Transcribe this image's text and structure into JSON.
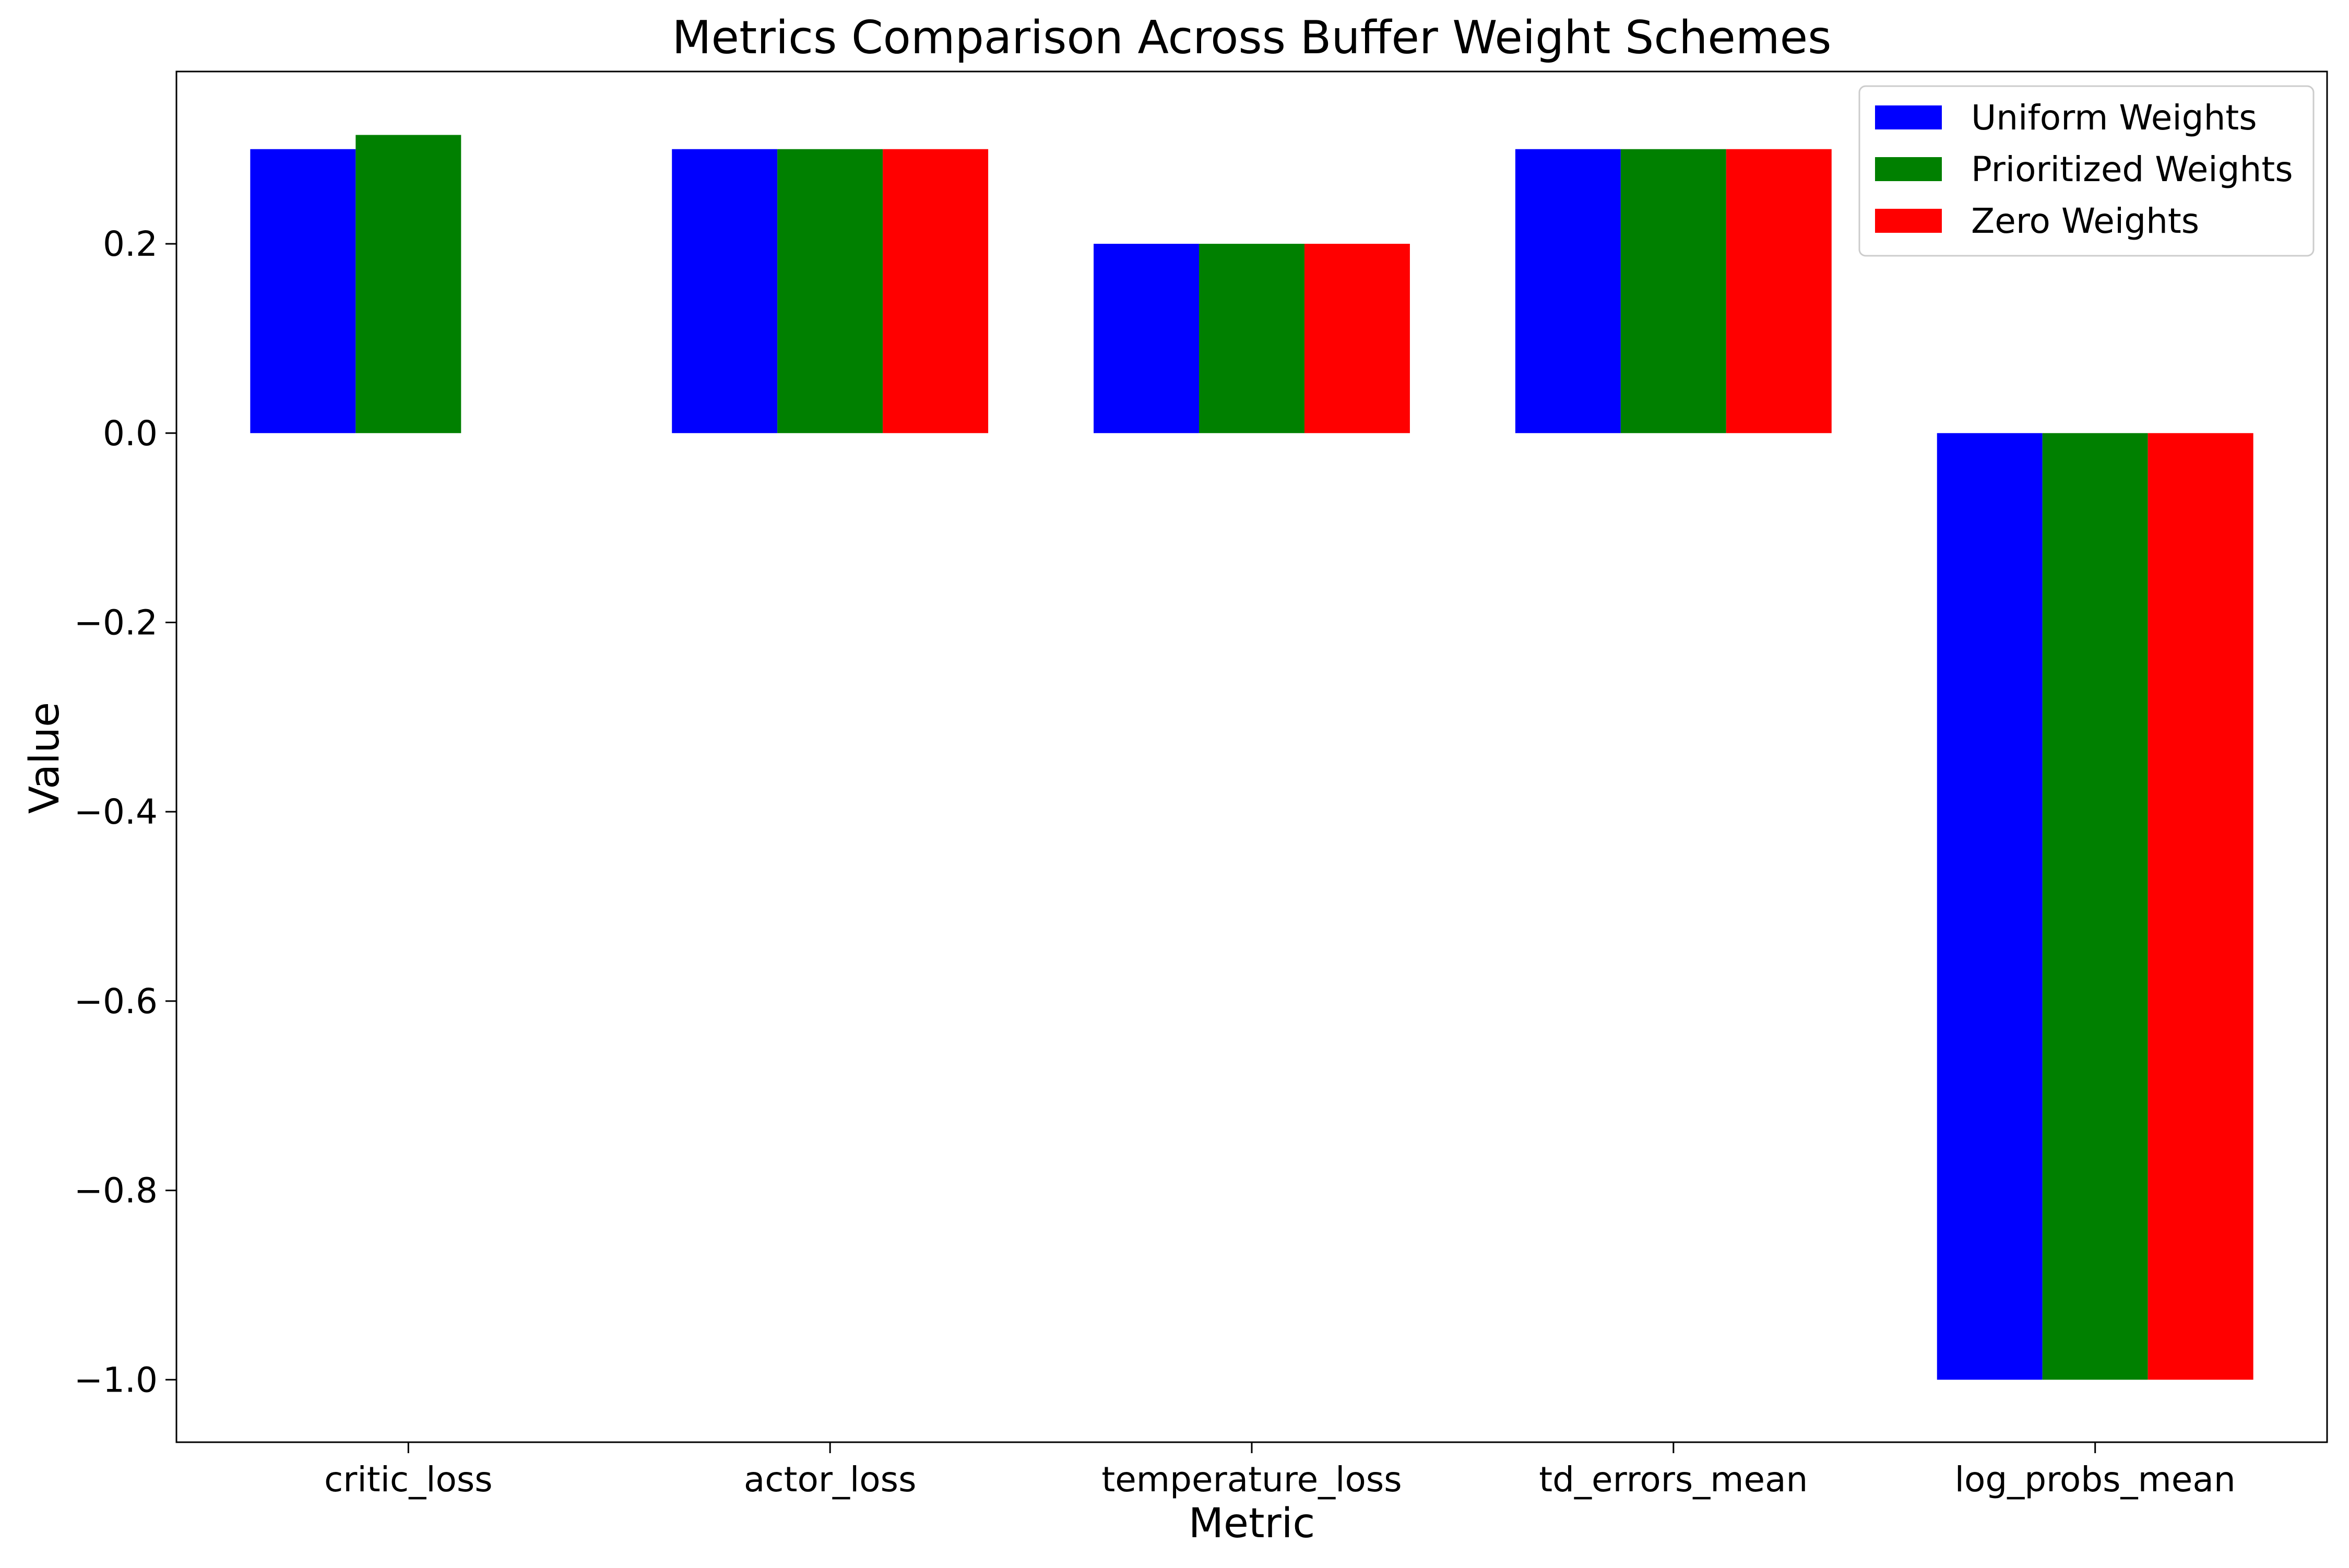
{
  "chart_data": {
    "type": "bar",
    "title": "Metrics Comparison Across Buffer Weight Schemes",
    "xlabel": "Metric",
    "ylabel": "Value",
    "categories": [
      "critic_loss",
      "actor_loss",
      "temperature_loss",
      "td_errors_mean",
      "log_probs_mean"
    ],
    "series": [
      {
        "name": "Uniform Weights",
        "color": "#0000ff",
        "values": [
          0.3,
          0.3,
          0.2,
          0.3,
          -1.0
        ]
      },
      {
        "name": "Prioritized Weights",
        "color": "#008000",
        "values": [
          0.315,
          0.3,
          0.2,
          0.3,
          -1.0
        ]
      },
      {
        "name": "Zero Weights",
        "color": "#ff0000",
        "values": [
          0.0,
          0.3,
          0.2,
          0.3,
          -1.0
        ]
      }
    ],
    "ylim": [
      -1.066,
      0.382
    ],
    "yticks": [
      -1.0,
      -0.8,
      -0.6,
      -0.4,
      -0.2,
      0.0,
      0.2
    ],
    "ytick_labels": [
      "−1.0",
      "−0.8",
      "−0.6",
      "−0.4",
      "−0.2",
      "0.0",
      "0.2"
    ],
    "grid": false,
    "legend_position": "top-right"
  }
}
